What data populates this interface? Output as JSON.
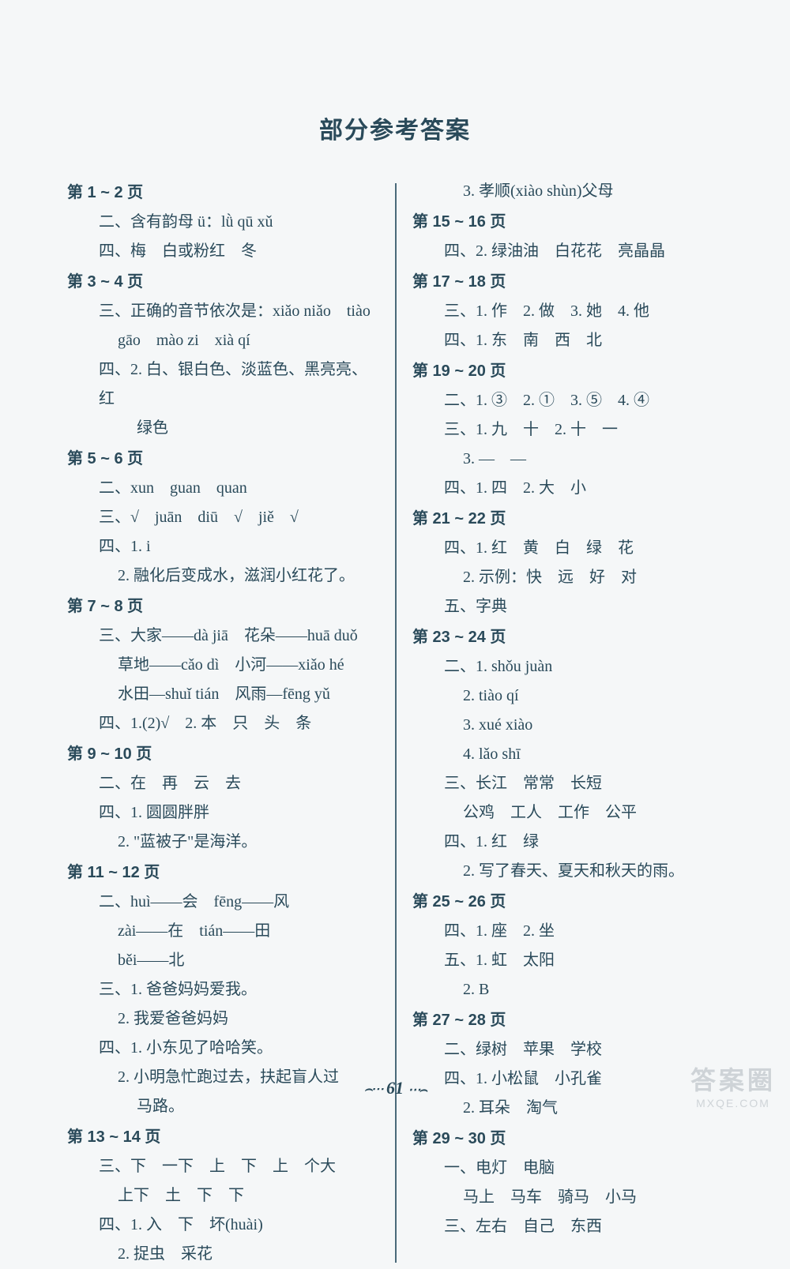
{
  "title": "部分参考答案",
  "page_number": "61",
  "watermark": {
    "line1": "答案圈",
    "line2": "MXQE.COM"
  },
  "colors": {
    "text": "#2a4a5a",
    "background": "#f5f7f8",
    "divider": "#4a6a7a",
    "watermark": "#6b7a85"
  },
  "typography": {
    "title_fontsize": 30,
    "body_fontsize": 20,
    "line_height": 1.85,
    "title_family": "SimHei",
    "body_family": "SimSun"
  },
  "left_column": [
    {
      "t": "hdr",
      "text": "第 1 ~ 2 页"
    },
    {
      "t": "l",
      "indent": 1,
      "text": "二、含有韵母 ü：lǜ qū xǔ"
    },
    {
      "t": "l",
      "indent": 1,
      "text": "四、梅　白或粉红　冬"
    },
    {
      "t": "hdr",
      "text": "第 3 ~ 4 页"
    },
    {
      "t": "l",
      "indent": 1,
      "text": "三、正确的音节依次是：xiǎo niǎo　tiào"
    },
    {
      "t": "l",
      "indent": 2,
      "text": "gāo　mào zi　xià qí"
    },
    {
      "t": "l",
      "indent": 1,
      "text": "四、2. 白、银白色、淡蓝色、黑亮亮、红"
    },
    {
      "t": "l",
      "indent": 3,
      "text": "绿色"
    },
    {
      "t": "hdr",
      "text": "第 5 ~ 6 页"
    },
    {
      "t": "l",
      "indent": 1,
      "text": "二、xun　guan　quan"
    },
    {
      "t": "l",
      "indent": 1,
      "text": "三、√　juān　diū　√　jiě　√"
    },
    {
      "t": "l",
      "indent": 1,
      "text": "四、1. i"
    },
    {
      "t": "l",
      "indent": 2,
      "text": "2. 融化后变成水，滋润小红花了。"
    },
    {
      "t": "hdr",
      "text": "第 7 ~ 8 页"
    },
    {
      "t": "l",
      "indent": 1,
      "text": "三、大家——dà jiā　花朵——huā duǒ"
    },
    {
      "t": "l",
      "indent": 2,
      "text": "草地——cǎo dì　小河——xiǎo hé"
    },
    {
      "t": "l",
      "indent": 2,
      "text": "水田—shuǐ tián　风雨—fēng yǔ"
    },
    {
      "t": "l",
      "indent": 1,
      "text": "四、1.(2)√　2. 本　只　头　条"
    },
    {
      "t": "hdr",
      "text": "第 9 ~ 10 页"
    },
    {
      "t": "l",
      "indent": 1,
      "text": "二、在　再　云　去"
    },
    {
      "t": "l",
      "indent": 1,
      "text": "四、1. 圆圆胖胖"
    },
    {
      "t": "l",
      "indent": 2,
      "text": "2. \"蓝被子\"是海洋。"
    },
    {
      "t": "hdr",
      "text": "第 11 ~ 12 页"
    },
    {
      "t": "l",
      "indent": 1,
      "text": "二、huì——会　fēng——风"
    },
    {
      "t": "l",
      "indent": 2,
      "text": "zài——在　tián——田"
    },
    {
      "t": "l",
      "indent": 2,
      "text": "běi——北"
    },
    {
      "t": "l",
      "indent": 1,
      "text": "三、1. 爸爸妈妈爱我。"
    },
    {
      "t": "l",
      "indent": 2,
      "text": "2. 我爱爸爸妈妈"
    },
    {
      "t": "l",
      "indent": 1,
      "text": "四、1. 小东见了哈哈笑。"
    },
    {
      "t": "l",
      "indent": 2,
      "text": "2. 小明急忙跑过去，扶起盲人过"
    },
    {
      "t": "l",
      "indent": 3,
      "text": "马路。"
    },
    {
      "t": "hdr",
      "text": "第 13 ~ 14 页"
    },
    {
      "t": "l",
      "indent": 1,
      "text": "三、下　一下　上　下　上　个大"
    },
    {
      "t": "l",
      "indent": 2,
      "text": "上下　土　下　下"
    },
    {
      "t": "l",
      "indent": 1,
      "text": "四、1. 入　下　坏(huài)"
    },
    {
      "t": "l",
      "indent": 2,
      "text": "2. 捉虫　采花"
    }
  ],
  "right_column": [
    {
      "t": "l",
      "indent": 2,
      "text": "3. 孝顺(xiào shùn)父母"
    },
    {
      "t": "hdr",
      "text": "第 15 ~ 16 页"
    },
    {
      "t": "l",
      "indent": 1,
      "text": "四、2. 绿油油　白花花　亮晶晶"
    },
    {
      "t": "hdr",
      "text": "第 17 ~ 18 页"
    },
    {
      "t": "l",
      "indent": 1,
      "text": "三、1. 作　2. 做　3. 她　4. 他"
    },
    {
      "t": "l",
      "indent": 1,
      "text": "四、1. 东　南　西　北"
    },
    {
      "t": "hdr",
      "text": "第 19 ~ 20 页"
    },
    {
      "t": "l",
      "indent": 1,
      "text": "二、1. ③　2. ①　3. ⑤　4. ④"
    },
    {
      "t": "l",
      "indent": 1,
      "text": "三、1. 九　十　2. 十　一"
    },
    {
      "t": "l",
      "indent": 2,
      "text": "3. —　—"
    },
    {
      "t": "l",
      "indent": 1,
      "text": "四、1. 四　2. 大　小"
    },
    {
      "t": "hdr",
      "text": "第 21 ~ 22 页"
    },
    {
      "t": "l",
      "indent": 1,
      "text": "四、1. 红　黄　白　绿　花"
    },
    {
      "t": "l",
      "indent": 2,
      "text": "2. 示例：快　远　好　对"
    },
    {
      "t": "l",
      "indent": 1,
      "text": "五、字典"
    },
    {
      "t": "hdr",
      "text": "第 23 ~ 24 页"
    },
    {
      "t": "l",
      "indent": 1,
      "text": "二、1. shǒu juàn"
    },
    {
      "t": "l",
      "indent": 2,
      "text": "2. tiào qí"
    },
    {
      "t": "l",
      "indent": 2,
      "text": "3. xué xiào"
    },
    {
      "t": "l",
      "indent": 2,
      "text": "4. lǎo shī"
    },
    {
      "t": "l",
      "indent": 1,
      "text": "三、长江　常常　长短"
    },
    {
      "t": "l",
      "indent": 2,
      "text": "公鸡　工人　工作　公平"
    },
    {
      "t": "l",
      "indent": 1,
      "text": "四、1. 红　绿"
    },
    {
      "t": "l",
      "indent": 2,
      "text": "2. 写了春天、夏天和秋天的雨。"
    },
    {
      "t": "hdr",
      "text": "第 25 ~ 26 页"
    },
    {
      "t": "l",
      "indent": 1,
      "text": "四、1. 座　2. 坐"
    },
    {
      "t": "l",
      "indent": 1,
      "text": "五、1. 虹　太阳"
    },
    {
      "t": "l",
      "indent": 2,
      "text": "2. B"
    },
    {
      "t": "hdr",
      "text": "第 27 ~ 28 页"
    },
    {
      "t": "l",
      "indent": 1,
      "text": "二、绿树　苹果　学校"
    },
    {
      "t": "l",
      "indent": 1,
      "text": "四、1. 小松鼠　小孔雀"
    },
    {
      "t": "l",
      "indent": 2,
      "text": "2. 耳朵　淘气"
    },
    {
      "t": "hdr",
      "text": "第 29 ~ 30 页"
    },
    {
      "t": "l",
      "indent": 1,
      "text": "一、电灯　电脑"
    },
    {
      "t": "l",
      "indent": 2,
      "text": "马上　马车　骑马　小马"
    },
    {
      "t": "l",
      "indent": 1,
      "text": "三、左右　自己　东西"
    }
  ]
}
